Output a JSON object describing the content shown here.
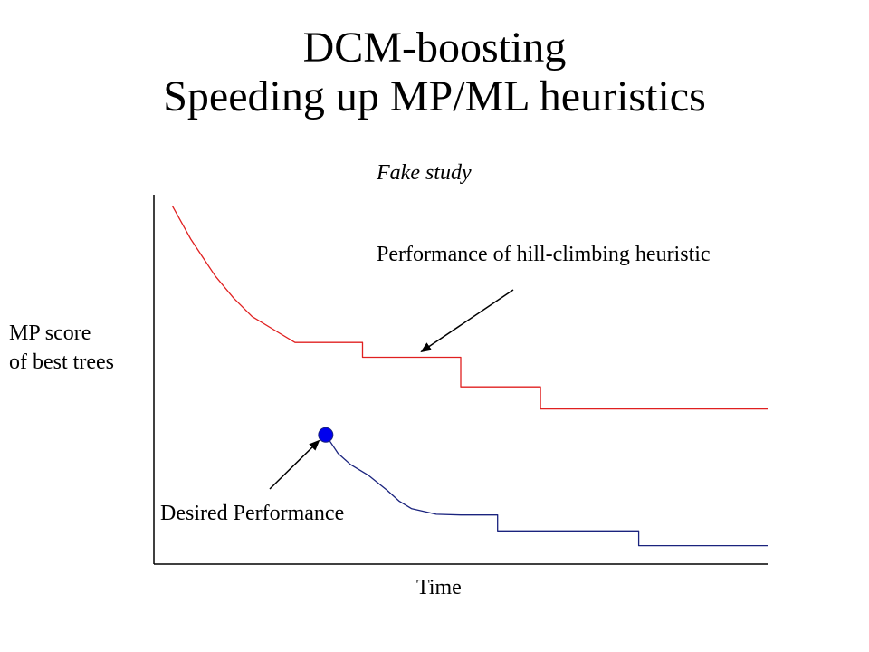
{
  "title": {
    "line1": "DCM-boosting",
    "line2": "Speeding up MP/ML heuristics"
  },
  "subtitle": "Fake study",
  "annotations": {
    "hill_climbing": "Performance of hill-climbing heuristic",
    "desired": "Desired Performance"
  },
  "axes": {
    "ylabel_line1": "MP score",
    "ylabel_line2": "of best trees",
    "xlabel": "Time"
  },
  "colors": {
    "axis": "#000000",
    "hill_series": "#e02020",
    "desired_series": "#1a237e",
    "marker": "#0000ee",
    "arrow": "#000000"
  },
  "chart_data": {
    "type": "line",
    "x_ticks": "none",
    "y_ticks": "none",
    "grid": false,
    "series": [
      {
        "points": [
          [
            0.03,
            0.97
          ],
          [
            0.06,
            0.88
          ],
          [
            0.08,
            0.83
          ],
          [
            0.1,
            0.78
          ],
          [
            0.13,
            0.72
          ],
          [
            0.16,
            0.67
          ],
          [
            0.2,
            0.63
          ],
          [
            0.23,
            0.6
          ],
          [
            0.24,
            0.6
          ],
          [
            0.34,
            0.6
          ],
          [
            0.34,
            0.56
          ],
          [
            0.5,
            0.56
          ],
          [
            0.5,
            0.48
          ],
          [
            0.63,
            0.48
          ],
          [
            0.63,
            0.42
          ],
          [
            0.75,
            0.42
          ],
          [
            1.0,
            0.42
          ]
        ]
      },
      {
        "points": [
          [
            0.28,
            0.35
          ],
          [
            0.3,
            0.3
          ],
          [
            0.32,
            0.27
          ],
          [
            0.35,
            0.24
          ],
          [
            0.38,
            0.2
          ],
          [
            0.4,
            0.17
          ],
          [
            0.42,
            0.15
          ],
          [
            0.46,
            0.135
          ],
          [
            0.5,
            0.133
          ],
          [
            0.56,
            0.133
          ],
          [
            0.56,
            0.09
          ],
          [
            0.7,
            0.09
          ],
          [
            0.79,
            0.09
          ],
          [
            0.79,
            0.05
          ],
          [
            1.0,
            0.05
          ]
        ]
      }
    ],
    "marker_point": [
      0.28,
      0.35
    ],
    "xlim": [
      0,
      1
    ],
    "ylim": [
      0,
      1
    ]
  }
}
